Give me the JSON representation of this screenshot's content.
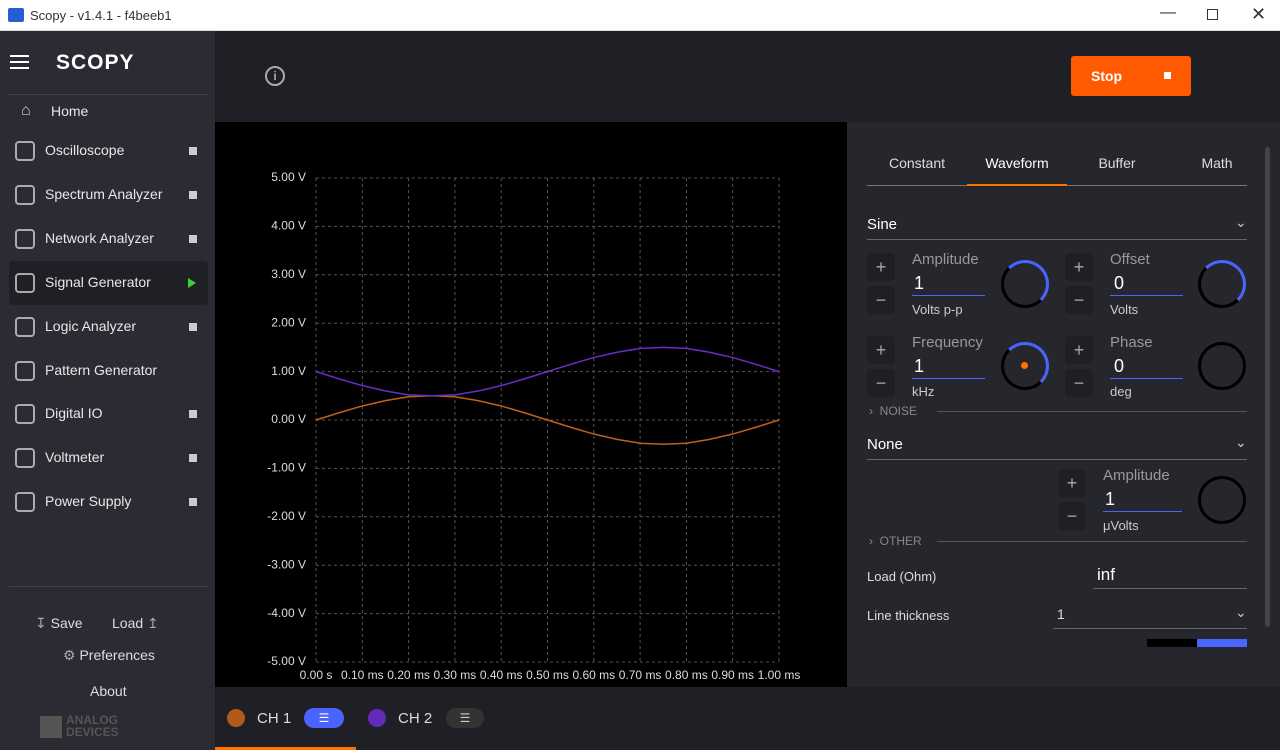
{
  "window": {
    "title": "Scopy - v1.4.1 - f4beeb1"
  },
  "sidebar": {
    "logo": "SCOPY",
    "home": "Home",
    "tools": [
      "Oscilloscope",
      "Spectrum Analyzer",
      "Network Analyzer",
      "Signal Generator",
      "Logic Analyzer",
      "Pattern Generator",
      "Digital IO",
      "Voltmeter",
      "Power Supply"
    ],
    "save": "Save",
    "load": "Load",
    "preferences": "Preferences",
    "about": "About",
    "brand": [
      "ANALOG",
      "DEVICES"
    ]
  },
  "toolbar": {
    "stop": "Stop"
  },
  "tabs": [
    "Constant",
    "Waveform",
    "Buffer",
    "Math"
  ],
  "waveform": {
    "type": "Sine",
    "amplitude": {
      "label": "Amplitude",
      "value": 1,
      "unit": "Volts p-p"
    },
    "offset": {
      "label": "Offset",
      "value": 0,
      "unit": "Volts"
    },
    "frequency": {
      "label": "Frequency",
      "value": 1,
      "unit": "kHz"
    },
    "phase": {
      "label": "Phase",
      "value": 0,
      "unit": "deg"
    }
  },
  "noise": {
    "section": "NOISE",
    "type": "None",
    "amplitude": {
      "label": "Amplitude",
      "value": 1,
      "unit": "μVolts"
    }
  },
  "other": {
    "section": "OTHER",
    "load_label": "Load (Ohm)",
    "load": "inf",
    "line_thickness_label": "Line thickness",
    "line_thickness": 1
  },
  "chart_data": {
    "type": "line",
    "x": [
      0,
      0.05,
      0.1,
      0.15,
      0.2,
      0.25,
      0.3,
      0.35,
      0.4,
      0.45,
      0.5,
      0.55,
      0.6,
      0.65,
      0.7,
      0.75,
      0.8,
      0.85,
      0.9,
      0.95,
      1
    ],
    "series": [
      {
        "name": "CH 1",
        "color": "#c0601c",
        "values": [
          0,
          0.15,
          0.29,
          0.4,
          0.48,
          0.5,
          0.48,
          0.4,
          0.29,
          0.15,
          0,
          -0.15,
          -0.29,
          -0.4,
          -0.48,
          -0.5,
          -0.48,
          -0.4,
          -0.29,
          -0.15,
          0
        ]
      },
      {
        "name": "CH 2",
        "color": "#6a2cc8",
        "values": [
          1,
          0.85,
          0.71,
          0.6,
          0.52,
          0.5,
          0.52,
          0.6,
          0.71,
          0.85,
          1,
          1.15,
          1.29,
          1.4,
          1.48,
          1.5,
          1.48,
          1.4,
          1.29,
          1.15,
          1
        ]
      }
    ],
    "xlim": [
      0,
      1
    ],
    "ylim": [
      -5,
      5
    ],
    "xticks": [
      {
        "value": 0,
        "label": "0.00 s"
      },
      {
        "value": 0.1,
        "label": "0.10 ms"
      },
      {
        "value": 0.2,
        "label": "0.20 ms"
      },
      {
        "value": 0.3,
        "label": "0.30 ms"
      },
      {
        "value": 0.4,
        "label": "0.40 ms"
      },
      {
        "value": 0.5,
        "label": "0.50 ms"
      },
      {
        "value": 0.6,
        "label": "0.60 ms"
      },
      {
        "value": 0.7,
        "label": "0.70 ms"
      },
      {
        "value": 0.8,
        "label": "0.80 ms"
      },
      {
        "value": 0.9,
        "label": "0.90 ms"
      },
      {
        "value": 1,
        "label": "1.00 ms"
      }
    ],
    "yticks": [
      {
        "value": 5,
        "label": "5.00 V"
      },
      {
        "value": 4,
        "label": "4.00 V"
      },
      {
        "value": 3,
        "label": "3.00 V"
      },
      {
        "value": 2,
        "label": "2.00 V"
      },
      {
        "value": 1,
        "label": "1.00 V"
      },
      {
        "value": 0,
        "label": "0.00 V"
      },
      {
        "value": -1,
        "label": "-1.00 V"
      },
      {
        "value": -2,
        "label": "-2.00 V"
      },
      {
        "value": -3,
        "label": "-3.00 V"
      },
      {
        "value": -4,
        "label": "-4.00 V"
      },
      {
        "value": -5,
        "label": "-5.00 V"
      }
    ],
    "grid": true
  }
}
